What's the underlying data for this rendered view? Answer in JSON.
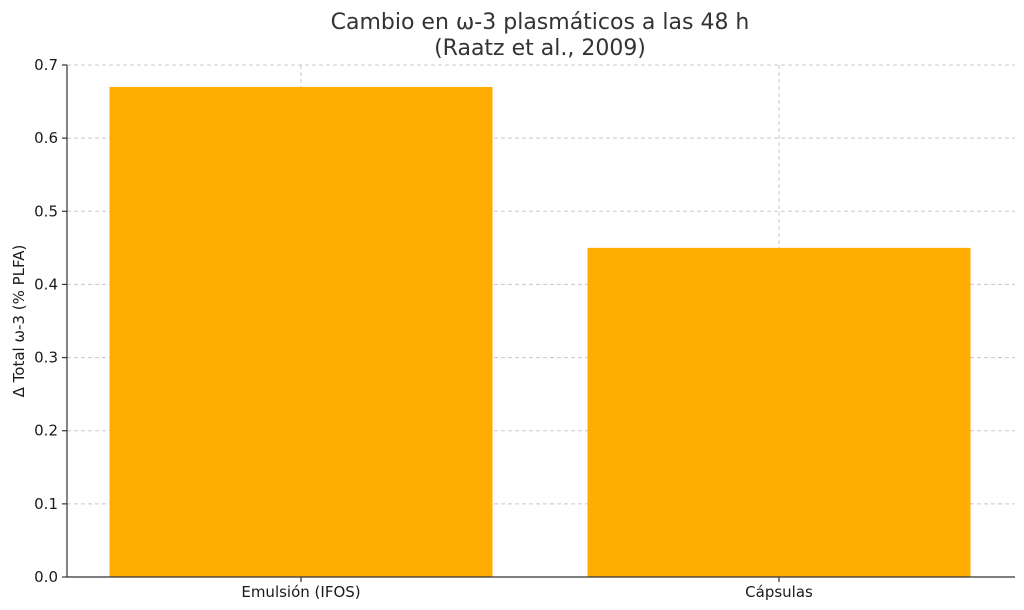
{
  "chart_data": {
    "type": "bar",
    "title": "Cambio en ω-3 plasmáticos a las 48 h",
    "subtitle": "(Raatz et al., 2009)",
    "xlabel": "",
    "ylabel": "Δ Total ω-3 (% PLFA)",
    "categories": [
      "Emulsión (IFOS)",
      "Cápsulas"
    ],
    "values": [
      0.67,
      0.45
    ],
    "ylim": [
      0,
      0.7
    ],
    "yticks": [
      "0.0",
      "0.1",
      "0.2",
      "0.3",
      "0.4",
      "0.5",
      "0.6",
      "0.7"
    ],
    "ytick_values": [
      0,
      0.1,
      0.2,
      0.3,
      0.4,
      0.5,
      0.6,
      0.7
    ],
    "grid": true,
    "bar_color": "#FFAD00"
  }
}
